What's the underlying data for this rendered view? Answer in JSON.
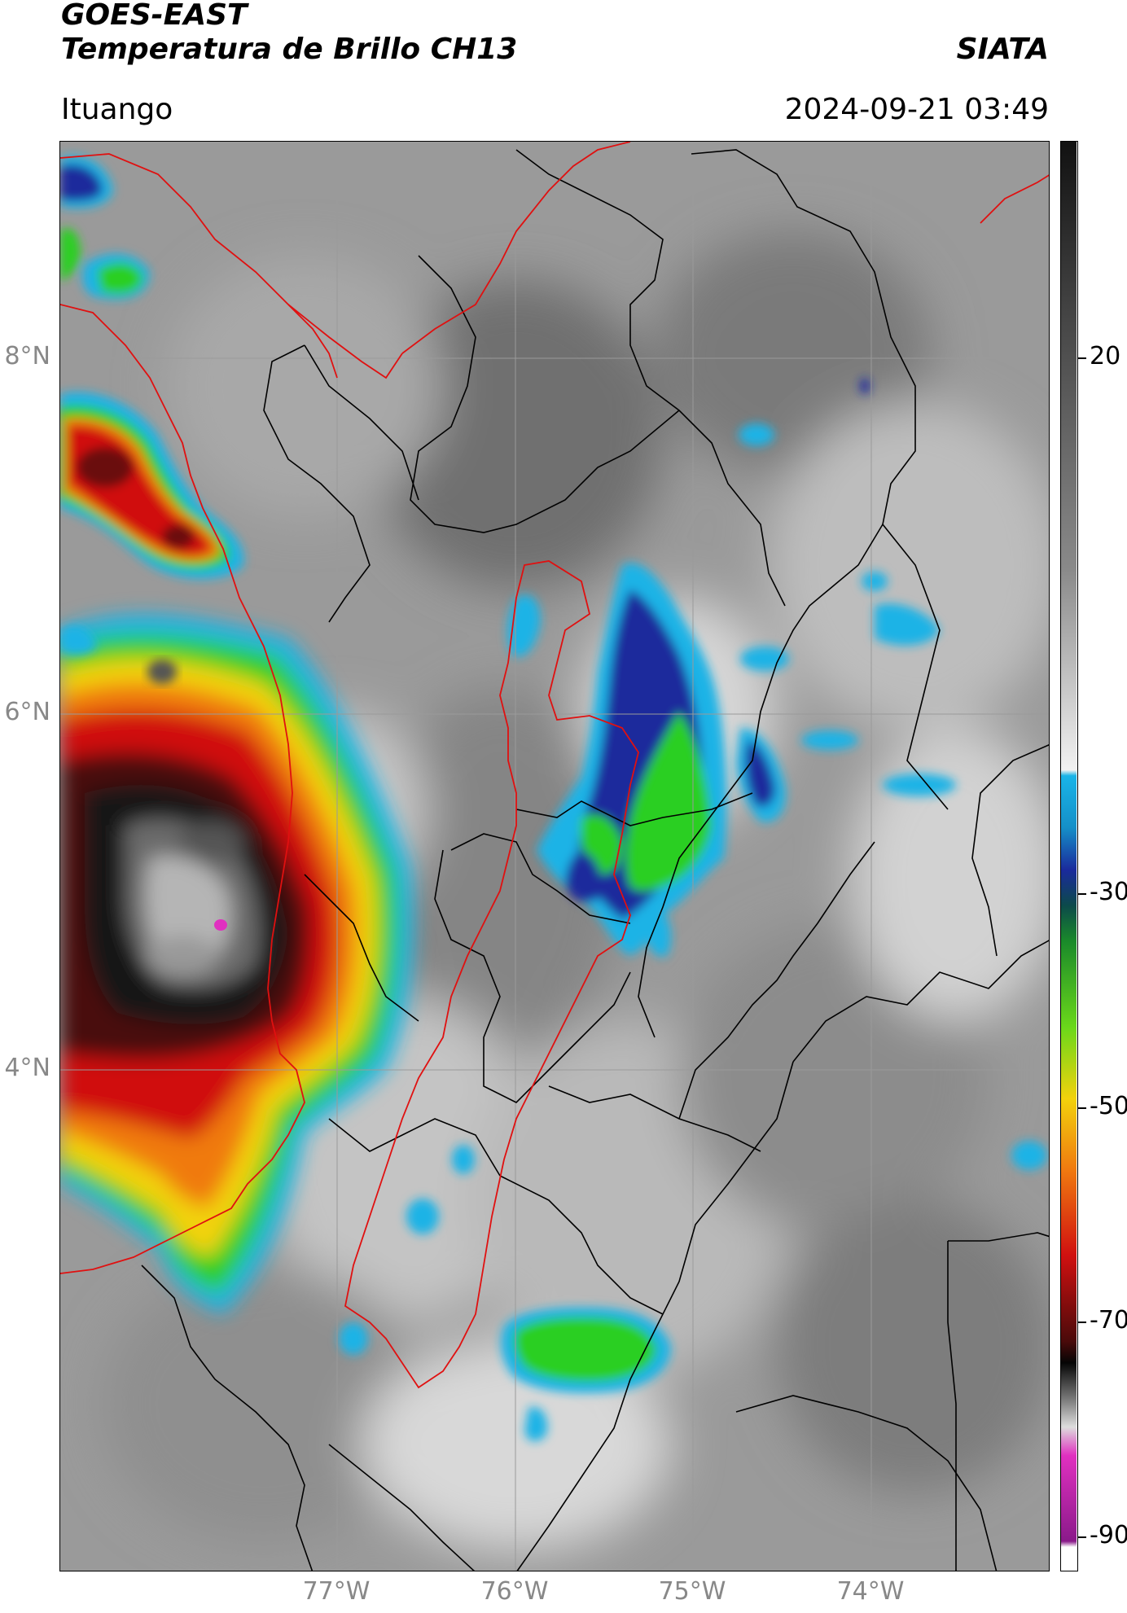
{
  "header": {
    "title_line1": "GOES-EAST",
    "title_line2": "Temperatura de Brillo CH13",
    "source": "SIATA",
    "region": "Ituango",
    "timestamp": "2024-09-21 03:49"
  },
  "axes": {
    "lat_labels": [
      "8°N",
      "6°N",
      "4°N"
    ],
    "lon_labels": [
      "77°W",
      "76°W",
      "75°W",
      "74°W"
    ]
  },
  "colorbar": {
    "tick_labels": [
      "20",
      "-30",
      "-50",
      "-70",
      "-90"
    ],
    "range": [
      -90,
      45
    ],
    "colors": {
      "warm_top": "#111111",
      "gray_mid": "#8a8a8a",
      "white_transition": "#f2f2f2",
      "cyan": "#19b4e8",
      "blue": "#1a2a9c",
      "green": "#2ccf22",
      "yellow": "#f2d20c",
      "orange": "#f07a10",
      "red": "#d01010",
      "dark_red": "#4a0a0a",
      "black": "#050505",
      "magenta": "#e030c0",
      "purple": "#8a1a8a"
    }
  },
  "map_colors": {
    "department_borders": "#000000",
    "basin_outline": "#e01010",
    "graticule": "#9a9a9a"
  }
}
